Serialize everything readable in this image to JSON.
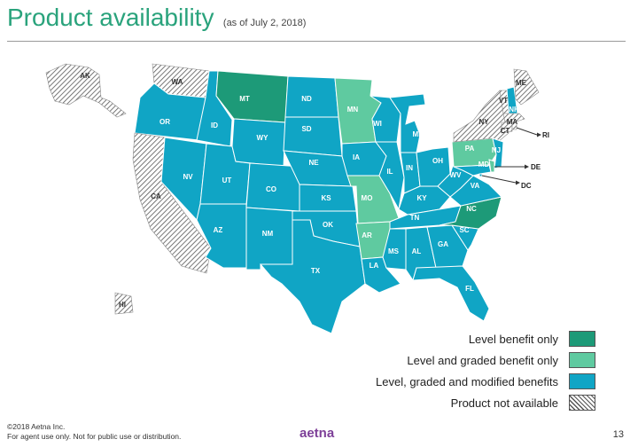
{
  "header": {
    "title": "Product availability",
    "subtitle": "(as of July 2, 2018)"
  },
  "colors": {
    "level_only": "#1d9a78",
    "level_graded": "#5fcaa0",
    "full": "#10a5c5",
    "not_available": "hatch"
  },
  "legend": [
    {
      "label": "Level benefit only",
      "category": "level_only"
    },
    {
      "label": "Level and graded benefit only",
      "category": "level_graded"
    },
    {
      "label": "Level, graded and modified benefits",
      "category": "full"
    },
    {
      "label": "Product not available",
      "category": "not_available"
    }
  ],
  "states": {
    "AK": {
      "category": "not_available"
    },
    "HI": {
      "category": "not_available"
    },
    "WA": {
      "category": "not_available"
    },
    "CA": {
      "category": "not_available"
    },
    "NY": {
      "category": "not_available"
    },
    "ME": {
      "category": "not_available"
    },
    "VT": {
      "category": "not_available"
    },
    "MA": {
      "category": "not_available"
    },
    "CT": {
      "category": "not_available"
    },
    "RI": {
      "category": "not_available"
    },
    "MT": {
      "category": "level_only"
    },
    "NC": {
      "category": "level_only"
    },
    "MN": {
      "category": "level_graded"
    },
    "MO": {
      "category": "level_graded"
    },
    "AR": {
      "category": "level_graded"
    },
    "PA": {
      "category": "level_graded"
    },
    "DE": {
      "category": "level_graded"
    },
    "OR": {
      "category": "full"
    },
    "ID": {
      "category": "full"
    },
    "NV": {
      "category": "full"
    },
    "UT": {
      "category": "full"
    },
    "AZ": {
      "category": "full"
    },
    "WY": {
      "category": "full"
    },
    "CO": {
      "category": "full"
    },
    "NM": {
      "category": "full"
    },
    "ND": {
      "category": "full"
    },
    "SD": {
      "category": "full"
    },
    "NE": {
      "category": "full"
    },
    "KS": {
      "category": "full"
    },
    "OK": {
      "category": "full"
    },
    "TX": {
      "category": "full"
    },
    "IA": {
      "category": "full"
    },
    "WI": {
      "category": "full"
    },
    "IL": {
      "category": "full"
    },
    "LA": {
      "category": "full"
    },
    "MI": {
      "category": "full"
    },
    "IN": {
      "category": "full"
    },
    "OH": {
      "category": "full"
    },
    "KY": {
      "category": "full"
    },
    "TN": {
      "category": "full"
    },
    "MS": {
      "category": "full"
    },
    "AL": {
      "category": "full"
    },
    "GA": {
      "category": "full"
    },
    "FL": {
      "category": "full"
    },
    "SC": {
      "category": "full"
    },
    "WV": {
      "category": "full"
    },
    "VA": {
      "category": "full"
    },
    "MD": {
      "category": "full"
    },
    "NJ": {
      "category": "full"
    },
    "NH": {
      "category": "full"
    },
    "DC": {
      "category": "full"
    }
  },
  "footer": {
    "copyright": "©2018 Aetna Inc.",
    "disclaimer": "For agent use only. Not for public use or distribution.",
    "logo": "aetna",
    "page": "13"
  }
}
